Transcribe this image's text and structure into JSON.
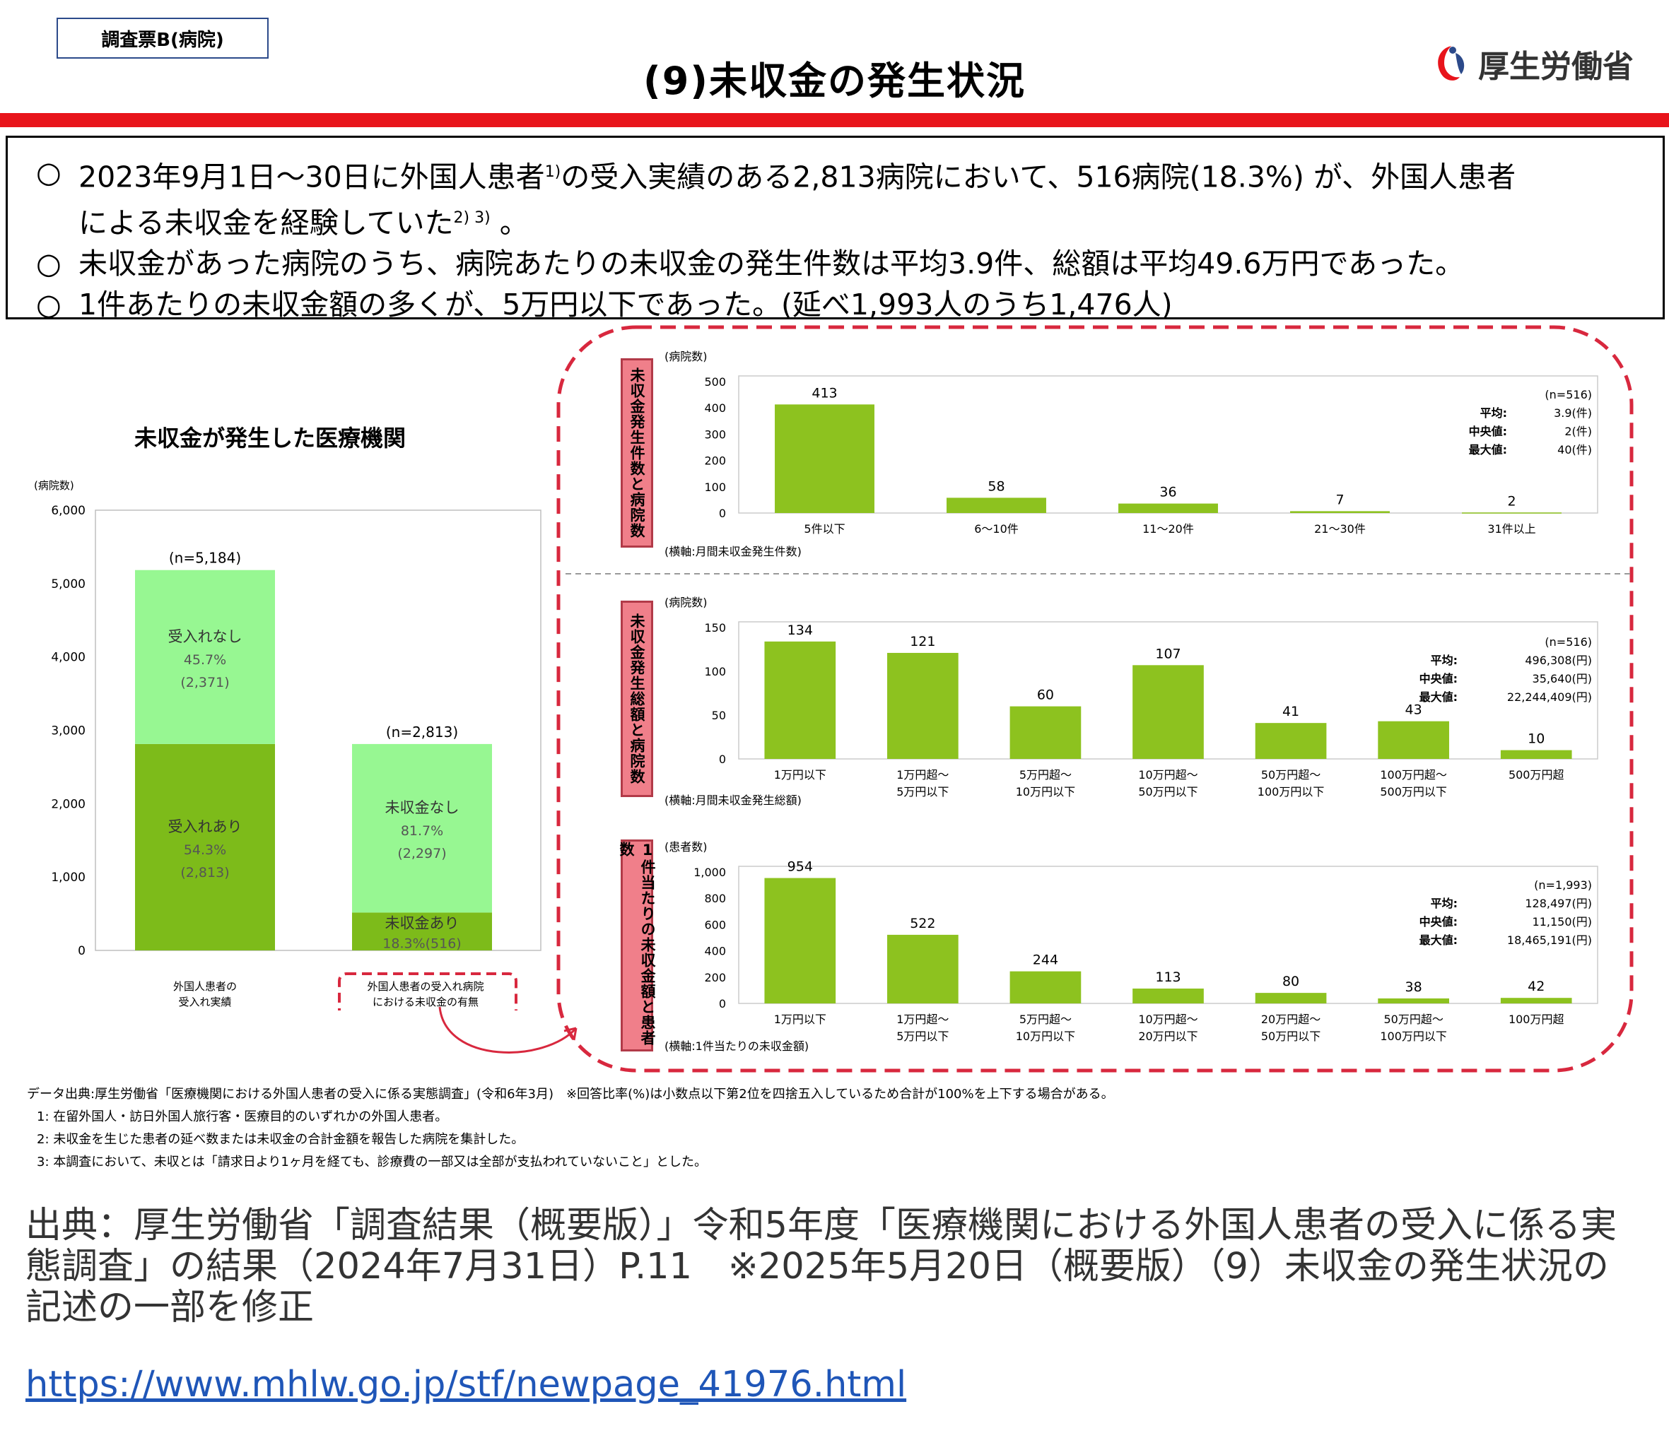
{
  "header": {
    "survey_tag": "調査票B(病院)",
    "title": "(9)未収金の発生状況",
    "ministry_name": "厚生労働省"
  },
  "summary": {
    "line1": {
      "text_a": "2023年9月1日～30日に外国人患者",
      "sup_a": "1)",
      "text_b": "の受入実績のある2,813病院において、516病院(18.3%) が、外国人患者",
      "cont": "による未収金を経験していた",
      "sup_b": "2) 3)",
      "text_c": " 。"
    },
    "line2": "未収金があった病院のうち、病院あたりの未収金の発生件数は平均3.9件、総額は平均49.6万円であった。",
    "line3": "1件あたりの未収金額の多くが、5万円以下であった。(延べ1,993人のうち1,476人)",
    "bullet": "○"
  },
  "colors": {
    "red": "#e8141b",
    "dashed_red": "#d8283e",
    "bar_green": "#8dc21f",
    "dark_green": "#7dbb1a",
    "light_green": "#97f792",
    "side_label_bg": "#f07f8a"
  },
  "chart_data": [
    {
      "type": "bar",
      "stacked": true,
      "title": "未収金が発生した医療機関",
      "ylabel": "(病院数)",
      "ylim": [
        0,
        6000
      ],
      "yticks": [
        "0",
        "1,000",
        "2,000",
        "3,000",
        "4,000",
        "5,000",
        "6,000"
      ],
      "categories": [
        {
          "line1": "外国人患者の",
          "line2": "受入れ実績"
        },
        {
          "line1": "外国人患者の受入れ病院",
          "line2": "における未収金の有無"
        }
      ],
      "bars": [
        {
          "n_label": "(n=5,184)",
          "total": 5184,
          "segments": [
            {
              "value": 2813,
              "label": "受入れあり",
              "pct": "54.3%",
              "count": "(2,813)"
            },
            {
              "value": 2371,
              "label": "受入れなし",
              "pct": "45.7%",
              "count": "(2,371)"
            }
          ]
        },
        {
          "n_label": "(n=2,813)",
          "total": 2813,
          "segments": [
            {
              "value": 516,
              "label": "未収金あり",
              "pct": "18.3%(516)",
              "count": ""
            },
            {
              "value": 2297,
              "label": "未収金なし",
              "pct": "81.7%",
              "count": "(2,297)"
            }
          ]
        }
      ]
    },
    {
      "type": "bar",
      "side_title": "未収金発生件数と病院数",
      "ylabel": "(病院数)",
      "xlabel": "(横軸:月間未収金発生件数)",
      "ylim": [
        0,
        500
      ],
      "yticks": [
        "0",
        "100",
        "200",
        "300",
        "400",
        "500"
      ],
      "categories": [
        [
          "5件以下"
        ],
        [
          "6～10件"
        ],
        [
          "11～20件"
        ],
        [
          "21～30件"
        ],
        [
          "31件以上"
        ]
      ],
      "values": [
        413,
        58,
        36,
        7,
        2
      ],
      "value_labels": [
        "413",
        "58",
        "36",
        "7",
        "2"
      ],
      "stats": [
        {
          "k": "",
          "v": "(n=516)"
        },
        {
          "k": "平均:",
          "v": "3.9(件)"
        },
        {
          "k": "中央値:",
          "v": "2(件)"
        },
        {
          "k": "最大値:",
          "v": "40(件)"
        }
      ]
    },
    {
      "type": "bar",
      "side_title": "未収金発生総額と病院数",
      "ylabel": "(病院数)",
      "xlabel": "(横軸:月間未収金発生総額)",
      "ylim": [
        0,
        150
      ],
      "yticks": [
        "0",
        "50",
        "100",
        "150"
      ],
      "categories": [
        [
          "1万円以下"
        ],
        [
          "1万円超～",
          "5万円以下"
        ],
        [
          "5万円超～",
          "10万円以下"
        ],
        [
          "10万円超～",
          "50万円以下"
        ],
        [
          "50万円超～",
          "100万円以下"
        ],
        [
          "100万円超～",
          "500万円以下"
        ],
        [
          "500万円超"
        ]
      ],
      "values": [
        134,
        121,
        60,
        107,
        41,
        43,
        10
      ],
      "value_labels": [
        "134",
        "121",
        "60",
        "107",
        "41",
        "43",
        "10"
      ],
      "stats": [
        {
          "k": "",
          "v": "(n=516)"
        },
        {
          "k": "平均:",
          "v": "496,308(円)"
        },
        {
          "k": "中央値:",
          "v": "35,640(円)"
        },
        {
          "k": "最大値:",
          "v": "22,244,409(円)"
        }
      ]
    },
    {
      "type": "bar",
      "side_title": "1件当たりの未収金額と患者数",
      "ylabel": "(患者数)",
      "xlabel": "(横軸:1件当たりの未収金額)",
      "ylim": [
        0,
        1000
      ],
      "yticks": [
        "0",
        "200",
        "400",
        "600",
        "800",
        "1,000"
      ],
      "categories": [
        [
          "1万円以下"
        ],
        [
          "1万円超～",
          "5万円以下"
        ],
        [
          "5万円超～",
          "10万円以下"
        ],
        [
          "10万円超～",
          "20万円以下"
        ],
        [
          "20万円超～",
          "50万円以下"
        ],
        [
          "50万円超～",
          "100万円以下"
        ],
        [
          "100万円超"
        ]
      ],
      "values": [
        954,
        522,
        244,
        113,
        80,
        38,
        42
      ],
      "value_labels": [
        "954",
        "522",
        "244",
        "113",
        "80",
        "38",
        "42"
      ],
      "stats": [
        {
          "k": "",
          "v": "(n=1,993)"
        },
        {
          "k": "平均:",
          "v": "128,497(円)"
        },
        {
          "k": "中央値:",
          "v": "11,150(円)"
        },
        {
          "k": "最大値:",
          "v": "18,465,191(円)"
        }
      ]
    }
  ],
  "footnotes": {
    "source": "データ出典:厚生労働省「医療機関における外国人患者の受入に係る実態調査」(令和6年3月)　※回答比率(%)は小数点以下第2位を四捨五入しているため合計が100%を上下する場合がある。",
    "n1": "1: 在留外国人・訪日外国人旅行客・医療目的のいずれかの外国人患者。",
    "n2": "2: 未収金を生じた患者の延べ数または未収金の合計金額を報告した病院を集計した。",
    "n3": "3: 本調査において、未収とは「請求日より1ヶ月を経ても、診療費の一部又は全部が支払われていないこと」とした。"
  },
  "source_citation": "出典：厚生労働省「調査結果（概要版）」令和5年度「医療機関における外国人患者の受入に係る実態調査」の結果（2024年7月31日）P.11　※2025年5月20日（概要版）（9）未収金の発生状況の記述の一部を修正",
  "source_link": "https://www.mhlw.go.jp/stf/newpage_41976.html"
}
